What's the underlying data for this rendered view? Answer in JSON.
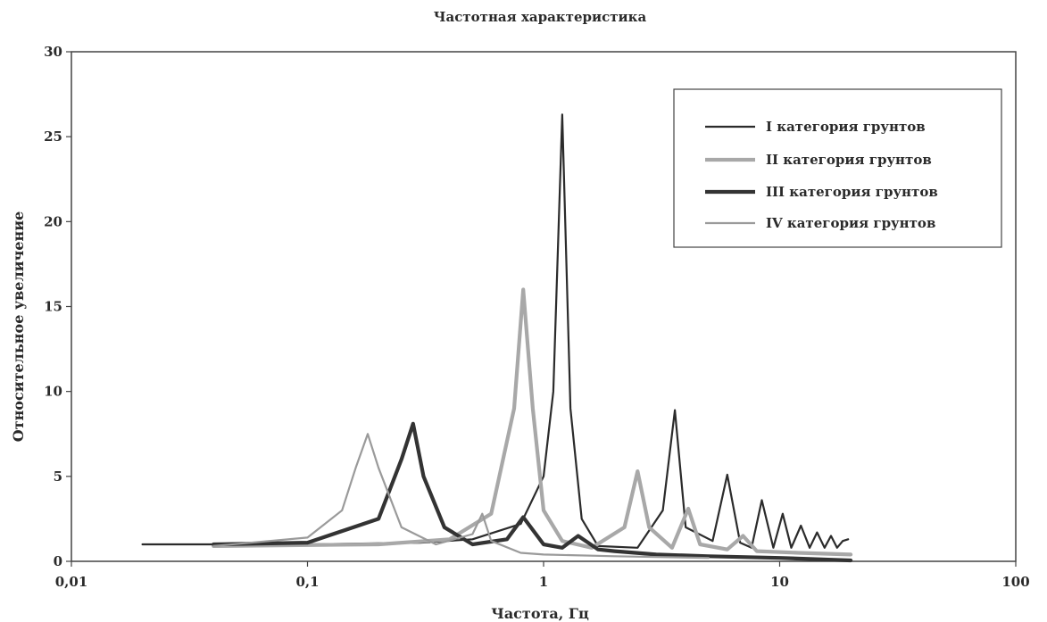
{
  "chart_data": {
    "type": "line",
    "title": "Частотная характеристика",
    "xlabel": "Частота, Гц",
    "ylabel": "Относительное увеличение",
    "x_scale": "log",
    "xlim": [
      0.01,
      100
    ],
    "ylim": [
      0,
      30
    ],
    "x_ticks": [
      0.01,
      0.1,
      1,
      10,
      100
    ],
    "x_tick_labels": [
      "0,01",
      "0,1",
      "1",
      "10",
      "100"
    ],
    "y_ticks": [
      0,
      5,
      10,
      15,
      20,
      25,
      30
    ],
    "y_tick_labels": [
      "0",
      "5",
      "10",
      "15",
      "20",
      "25",
      "30"
    ],
    "grid": false,
    "legend_position": "top-right",
    "series": [
      {
        "name": "I категория грунтов",
        "color": "#2b2b2b",
        "style": "thin",
        "x": [
          0.02,
          0.1,
          0.3,
          0.5,
          0.8,
          1.0,
          1.1,
          1.2,
          1.3,
          1.45,
          1.7,
          2.5,
          3.2,
          3.6,
          4.0,
          5.2,
          6.0,
          6.8,
          7.6,
          8.4,
          9.4,
          10.3,
          11.2,
          12.3,
          13.4,
          14.4,
          15.5,
          16.5,
          17.5,
          18.5,
          19.5
        ],
        "y": [
          1.0,
          1.0,
          1.1,
          1.3,
          2.2,
          5.0,
          10.0,
          26.3,
          9.0,
          2.5,
          0.9,
          0.8,
          3.0,
          8.9,
          2.0,
          1.2,
          5.1,
          1.1,
          0.8,
          3.6,
          0.8,
          2.8,
          0.8,
          2.1,
          0.8,
          1.7,
          0.8,
          1.5,
          0.8,
          1.2,
          1.3
        ]
      },
      {
        "name": "II категория грунтов",
        "color": "#a8a8a8",
        "style": "thick",
        "x": [
          0.04,
          0.2,
          0.4,
          0.6,
          0.75,
          0.82,
          0.9,
          1.0,
          1.2,
          1.6,
          2.2,
          2.5,
          2.8,
          3.5,
          4.1,
          4.6,
          6.0,
          7.0,
          8.0,
          12.0,
          20.0
        ],
        "y": [
          0.9,
          1.0,
          1.3,
          2.8,
          9.0,
          16.0,
          9.0,
          3.0,
          1.2,
          0.8,
          2.0,
          5.3,
          2.0,
          0.8,
          3.1,
          1.0,
          0.7,
          1.5,
          0.6,
          0.5,
          0.4
        ]
      },
      {
        "name": "III категория грунтов",
        "color": "#333333",
        "style": "thick",
        "x": [
          0.04,
          0.1,
          0.2,
          0.25,
          0.28,
          0.31,
          0.38,
          0.5,
          0.7,
          0.82,
          1.0,
          1.2,
          1.4,
          1.7,
          2.0,
          3.0,
          5.0,
          10.0,
          20.0
        ],
        "y": [
          1.0,
          1.1,
          2.5,
          6.0,
          8.1,
          5.0,
          2.0,
          1.0,
          1.3,
          2.6,
          1.0,
          0.8,
          1.5,
          0.7,
          0.6,
          0.4,
          0.3,
          0.2,
          0.05
        ]
      },
      {
        "name": "IV категория грунтов",
        "color": "#9a9a9a",
        "style": "thin",
        "x": [
          0.04,
          0.1,
          0.14,
          0.16,
          0.18,
          0.2,
          0.25,
          0.35,
          0.5,
          0.55,
          0.6,
          0.8,
          1.0,
          2.0,
          5.0
        ],
        "y": [
          0.9,
          1.4,
          3.0,
          5.5,
          7.5,
          5.5,
          2.0,
          1.0,
          1.6,
          2.8,
          1.2,
          0.5,
          0.4,
          0.3,
          0.2
        ]
      }
    ]
  }
}
